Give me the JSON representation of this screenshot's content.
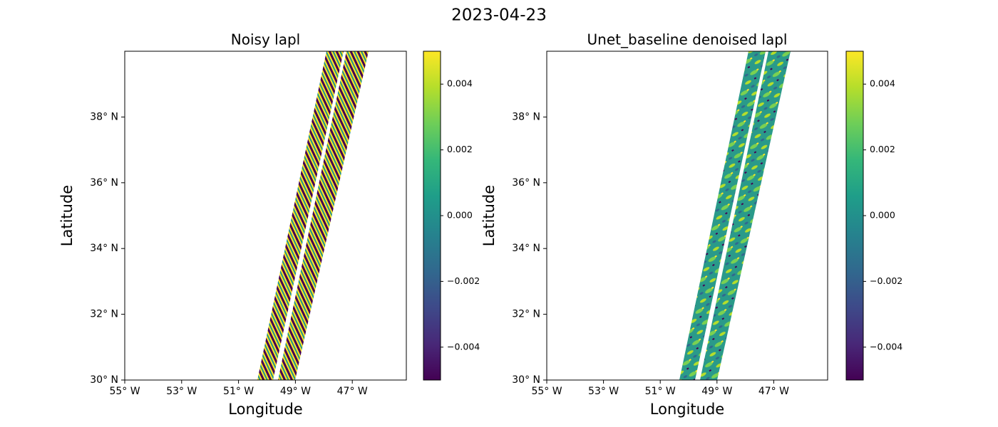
{
  "title": "2023-04-23",
  "chart_data": [
    {
      "type": "swath-map",
      "title": "Noisy lapl",
      "xlabel": "Longitude",
      "ylabel": "Latitude",
      "style": "noisy",
      "xlim": [
        -55,
        -45.1
      ],
      "ylim": [
        30,
        40
      ],
      "xticks": [
        {
          "value": -55,
          "label": "55° W"
        },
        {
          "value": -53,
          "label": "53° W"
        },
        {
          "value": -51,
          "label": "51° W"
        },
        {
          "value": -49,
          "label": "49° W"
        },
        {
          "value": -47,
          "label": "47° W"
        }
      ],
      "yticks": [
        {
          "value": 30,
          "label": "30° N"
        },
        {
          "value": 32,
          "label": "32° N"
        },
        {
          "value": 34,
          "label": "34° N"
        },
        {
          "value": 36,
          "label": "36° N"
        },
        {
          "value": 38,
          "label": "38° N"
        }
      ],
      "colorbar": {
        "colormap": "viridis",
        "lim": [
          -0.005,
          0.005
        ],
        "ticks": [
          {
            "value": -0.004,
            "label": "−0.004"
          },
          {
            "value": -0.002,
            "label": "−0.002"
          },
          {
            "value": 0,
            "label": "0.000"
          },
          0.002,
          0.004
        ]
      }
    },
    {
      "type": "swath-map",
      "title": "Unet_baseline denoised lapl",
      "xlabel": "Longitude",
      "ylabel": "Latitude",
      "style": "smooth",
      "xlim": [
        -55,
        -45.1
      ],
      "ylim": [
        30,
        40
      ],
      "xticks": [
        {
          "value": -55,
          "label": "55° W"
        },
        {
          "value": -53,
          "label": "53° W"
        },
        {
          "value": -51,
          "label": "51° W"
        },
        {
          "value": -49,
          "label": "49° W"
        },
        {
          "value": -47,
          "label": "47° W"
        }
      ],
      "yticks": [
        {
          "value": 30,
          "label": "30° N"
        },
        {
          "value": 32,
          "label": "32° N"
        },
        {
          "value": 34,
          "label": "34° N"
        },
        {
          "value": 36,
          "label": "36° N"
        },
        {
          "value": 38,
          "label": "38° N"
        }
      ],
      "colorbar": {
        "colormap": "viridis",
        "lim": [
          -0.005,
          0.005
        ],
        "ticks": [
          {
            "value": -0.004,
            "label": "−0.004"
          },
          {
            "value": -0.002,
            "label": "−0.002"
          },
          {
            "value": 0,
            "label": "0.000"
          },
          0.002,
          0.004
        ]
      }
    }
  ]
}
